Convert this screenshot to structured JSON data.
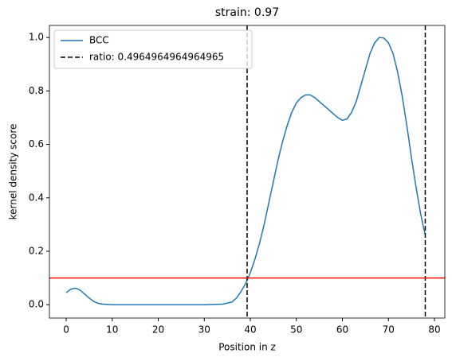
{
  "chart_data": {
    "type": "line",
    "title": "strain: 0.97",
    "x_label": "Position in z",
    "y_label": "kernel density score",
    "x": [
      0,
      1,
      2,
      3,
      4,
      5,
      6,
      7,
      8,
      10,
      20,
      30,
      34,
      36,
      37,
      38,
      39,
      40,
      41,
      42,
      43,
      44,
      45,
      46,
      47,
      48,
      49,
      50,
      51,
      52,
      53,
      54,
      55,
      56,
      57,
      58,
      59,
      60,
      61,
      62,
      63,
      64,
      65,
      66,
      67,
      68,
      69,
      70,
      71,
      72,
      73,
      74,
      75,
      76,
      77,
      78
    ],
    "series": [
      {
        "name": "BCC",
        "color": "#1f77b4",
        "values": [
          0.045,
          0.058,
          0.062,
          0.055,
          0.04,
          0.025,
          0.012,
          0.005,
          0.002,
          0,
          0,
          0,
          0.002,
          0.01,
          0.025,
          0.05,
          0.08,
          0.12,
          0.17,
          0.23,
          0.3,
          0.38,
          0.46,
          0.54,
          0.61,
          0.67,
          0.72,
          0.755,
          0.775,
          0.785,
          0.785,
          0.775,
          0.76,
          0.745,
          0.73,
          0.715,
          0.7,
          0.69,
          0.695,
          0.72,
          0.76,
          0.82,
          0.88,
          0.94,
          0.98,
          1.0,
          0.998,
          0.98,
          0.94,
          0.87,
          0.78,
          0.67,
          0.55,
          0.44,
          0.34,
          0.26
        ]
      }
    ],
    "vlines": {
      "name": "ratio: 0.4964964964964965",
      "color": "#000000",
      "x": [
        39.3,
        78
      ]
    },
    "hline": {
      "color": "#ff0000",
      "y": 0.1
    },
    "xlim": [
      -3.64,
      82.25
    ],
    "ylim": [
      -0.05,
      1.045
    ],
    "xticks": [
      0,
      10,
      20,
      30,
      40,
      50,
      60,
      70,
      80
    ],
    "yticks": [
      {
        "value": 0,
        "label": "0.0"
      },
      {
        "value": 0.2,
        "label": "0.2"
      },
      {
        "value": 0.4,
        "label": "0.4"
      },
      {
        "value": 0.6,
        "label": "0.6"
      },
      {
        "value": 0.8,
        "label": "0.8"
      },
      {
        "value": 1.0,
        "label": "1.0"
      }
    ],
    "legend": "upper left"
  }
}
